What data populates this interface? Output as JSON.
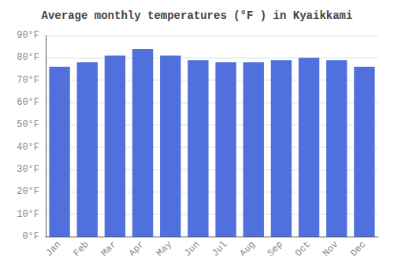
{
  "chart_data": {
    "type": "bar",
    "title": "Average monthly temperatures (°F ) in Kyaikkami",
    "categories": [
      "Jan",
      "Feb",
      "Mar",
      "Apr",
      "May",
      "Jun",
      "Jul",
      "Aug",
      "Sep",
      "Oct",
      "Nov",
      "Dec"
    ],
    "values": [
      76,
      78,
      81,
      84,
      81,
      79,
      78,
      78,
      79,
      80,
      79,
      76
    ],
    "ylim": [
      0,
      90
    ],
    "yticks": [
      {
        "value": 0,
        "label": "0°F"
      },
      {
        "value": 10,
        "label": "10°F"
      },
      {
        "value": 20,
        "label": "20°F"
      },
      {
        "value": 30,
        "label": "30°F"
      },
      {
        "value": 40,
        "label": "40°F"
      },
      {
        "value": 50,
        "label": "50°F"
      },
      {
        "value": 60,
        "label": "60°F"
      },
      {
        "value": 70,
        "label": "70°F"
      },
      {
        "value": 80,
        "label": "80°F"
      },
      {
        "value": 90,
        "label": "90°F"
      }
    ],
    "grid": true
  }
}
